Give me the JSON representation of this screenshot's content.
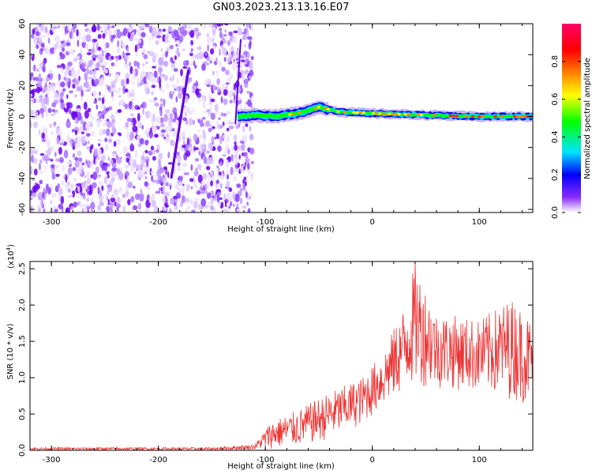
{
  "figure_title": "GN03.2023.213.13.16.E07",
  "chart_data": [
    {
      "type": "heatmap",
      "name": "spectrogram",
      "xlabel": "Height of straight line (km)",
      "ylabel": "Frequency (Hz)",
      "xlim": [
        -320,
        150
      ],
      "ylim": [
        -62,
        60
      ],
      "xticks": [
        -300,
        -200,
        -100,
        0,
        100
      ],
      "yticks": [
        -60,
        -40,
        -20,
        0,
        20,
        40,
        60
      ],
      "colorbar": {
        "label": "Normalized spectral amplitude",
        "range": [
          0,
          1
        ],
        "ticks": [
          0.0,
          0.2,
          0.4,
          0.6,
          0.8
        ],
        "colors": [
          "#ffffff",
          "#6a00ff",
          "#0000ff",
          "#00e5ff",
          "#00ff00",
          "#ffff00",
          "#ff8000",
          "#ff0000",
          "#ff00a0"
        ]
      },
      "regions": [
        {
          "x": [
            -320,
            -120
          ],
          "y": [
            -62,
            60
          ],
          "amplitude": 0.1,
          "description": "broadband noise"
        },
        {
          "x": [
            -125,
            150
          ],
          "y": [
            -3,
            4
          ],
          "amplitude_peak": 0.9,
          "description": "narrow signal near 0 Hz"
        }
      ],
      "ridge": [
        {
          "x": -125,
          "y": 0
        },
        {
          "x": -110,
          "y": 1
        },
        {
          "x": -90,
          "y": 0
        },
        {
          "x": -70,
          "y": 2
        },
        {
          "x": -50,
          "y": 6
        },
        {
          "x": -30,
          "y": 3
        },
        {
          "x": 0,
          "y": 2
        },
        {
          "x": 50,
          "y": 1
        },
        {
          "x": 100,
          "y": 0
        },
        {
          "x": 150,
          "y": 0
        }
      ],
      "streak": [
        {
          "x": -172,
          "y": 30
        },
        {
          "x": -188,
          "y": -40
        }
      ]
    },
    {
      "type": "line",
      "name": "snr",
      "xlabel": "Height of straight line (km)",
      "ylabel": "SNR (10 * v/v)",
      "yscale_label": "(x10",
      "yscale_exp": "4",
      "yscale_close": ")",
      "xlim": [
        -320,
        150
      ],
      "ylim": [
        0,
        2.6
      ],
      "xticks": [
        -300,
        -200,
        -100,
        0,
        100
      ],
      "yticks": [
        "0.0",
        "0.5",
        "1.0",
        "1.5",
        "2.0",
        "2.5"
      ],
      "color": "#ee3333",
      "envelope": [
        {
          "x": -320,
          "low": 0.0,
          "high": 0.04
        },
        {
          "x": -150,
          "low": 0.0,
          "high": 0.04
        },
        {
          "x": -110,
          "low": 0.01,
          "high": 0.08
        },
        {
          "x": -95,
          "low": 0.02,
          "high": 0.4
        },
        {
          "x": -70,
          "low": 0.05,
          "high": 0.55
        },
        {
          "x": -40,
          "low": 0.15,
          "high": 0.8
        },
        {
          "x": -10,
          "low": 0.35,
          "high": 1.0
        },
        {
          "x": 10,
          "low": 0.6,
          "high": 1.35
        },
        {
          "x": 30,
          "low": 0.8,
          "high": 2.0
        },
        {
          "x": 40,
          "low": 0.9,
          "high": 2.6
        },
        {
          "x": 60,
          "low": 0.85,
          "high": 1.9
        },
        {
          "x": 100,
          "low": 0.8,
          "high": 1.8
        },
        {
          "x": 130,
          "low": 0.7,
          "high": 2.1
        },
        {
          "x": 150,
          "low": 0.6,
          "high": 1.8
        }
      ]
    }
  ]
}
